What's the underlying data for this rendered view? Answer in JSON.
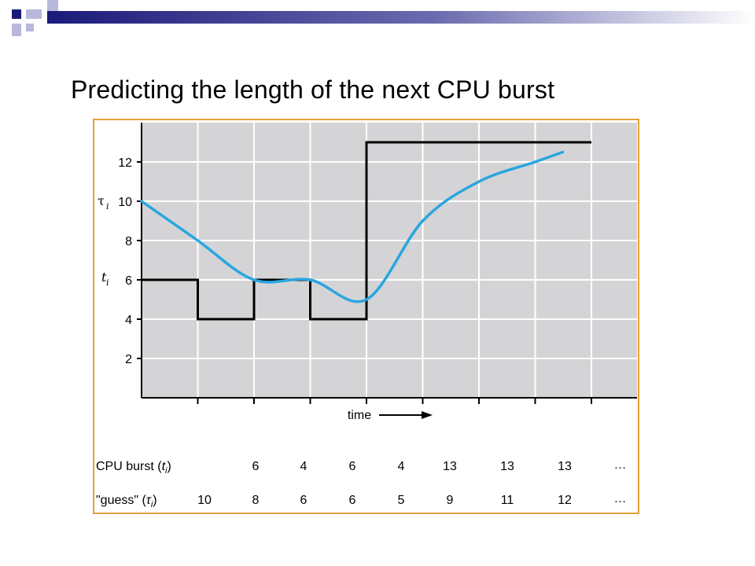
{
  "slide": {
    "title": "Predicting the length of the next CPU burst",
    "colors": {
      "accent_navy": "#1a1a7a",
      "accent_light": "#b8b8dd",
      "frame": "#e3a23a"
    }
  },
  "chart_data": {
    "type": "line",
    "title": "",
    "xlabel": "time",
    "ylabel_tau": "τ",
    "ylabel_tau_sub": "i",
    "ylabel_t": "t",
    "ylabel_t_sub": "i",
    "x_count": 9,
    "ylim": [
      0,
      14
    ],
    "yticks": [
      2,
      4,
      6,
      8,
      10,
      12
    ],
    "grid": true,
    "background": "#d4d4d6",
    "series": [
      {
        "kind": "actual",
        "color": "#000000",
        "values": [
          6,
          4,
          6,
          4,
          13,
          13,
          13,
          13
        ]
      },
      {
        "kind": "prediction",
        "color": "#29a6e0",
        "values": [
          10,
          8,
          6,
          6,
          5,
          9,
          11,
          12
        ]
      }
    ],
    "table": {
      "rows": [
        {
          "label": "CPU burst (",
          "label_var": "t",
          "label_sub": "i",
          "label_end": ")",
          "values": [
            "6",
            "4",
            "6",
            "4",
            "13",
            "13",
            "13"
          ],
          "ellipsis": "…"
        },
        {
          "label": "\"guess\" (",
          "label_var": "τ",
          "label_sub": "i",
          "label_end": ")",
          "values": [
            "10",
            "8",
            "6",
            "6",
            "5",
            "9",
            "11",
            "12"
          ],
          "ellipsis": "…"
        }
      ]
    }
  }
}
